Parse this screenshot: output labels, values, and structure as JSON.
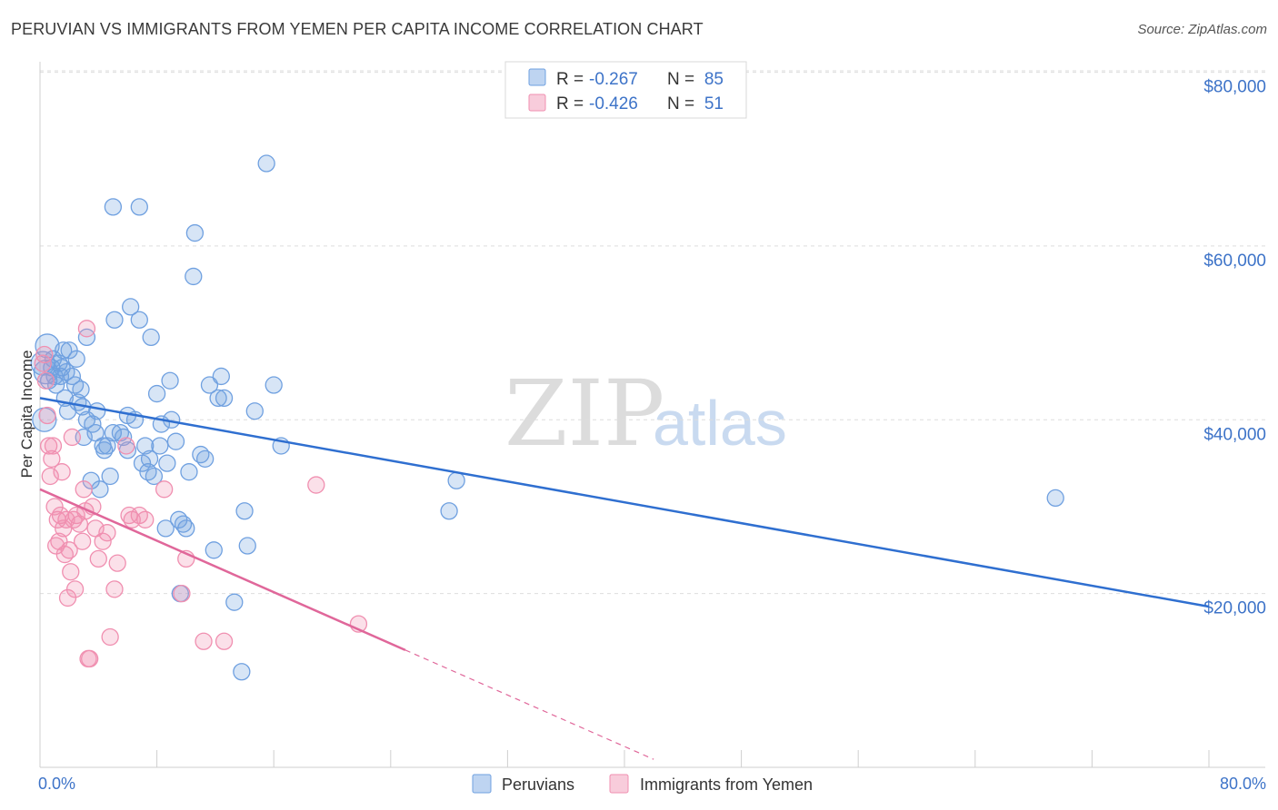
{
  "title": "PERUVIAN VS IMMIGRANTS FROM YEMEN PER CAPITA INCOME CORRELATION CHART",
  "source": "Source: ZipAtlas.com",
  "watermark": {
    "zip": "ZIP",
    "atlas": "atlas"
  },
  "legend": {
    "rows": [
      {
        "r_label": "R =",
        "r_value": "-0.267",
        "n_label": "N =",
        "n_value": "85",
        "color": "#6fa0e0"
      },
      {
        "r_label": "R =",
        "r_value": "-0.426",
        "n_label": "N =",
        "n_value": "51",
        "color": "#f08fb0"
      }
    ]
  },
  "chart_data": {
    "type": "scatter",
    "ylabel": "Per Capita Income",
    "xlim": [
      0,
      80
    ],
    "ylim": [
      0,
      81000
    ],
    "x_tick_labels": {
      "left": "0.0%",
      "right": "80.0%"
    },
    "y_ticks": [
      {
        "value": 20000,
        "label": "$20,000"
      },
      {
        "value": 40000,
        "label": "$40,000"
      },
      {
        "value": 60000,
        "label": "$60,000"
      },
      {
        "value": 80000,
        "label": "$80,000"
      }
    ],
    "grid": "horizontal dashed",
    "legend_position": "top-center",
    "series": [
      {
        "name": "Peruvians",
        "color": "#6fa0e0",
        "trend": {
          "x0": 0,
          "y0": 42500,
          "x1": 80,
          "y1": 18500,
          "dashed_from": null
        },
        "points": [
          [
            0.2,
            46500
          ],
          [
            0.3,
            40000
          ],
          [
            0.4,
            45500
          ],
          [
            0.5,
            48500
          ],
          [
            0.6,
            44500
          ],
          [
            0.8,
            46000
          ],
          [
            0.9,
            47000
          ],
          [
            1.0,
            45000
          ],
          [
            1.1,
            44000
          ],
          [
            1.3,
            46500
          ],
          [
            1.4,
            45000
          ],
          [
            1.6,
            48000
          ],
          [
            1.7,
            42500
          ],
          [
            1.9,
            41000
          ],
          [
            2.0,
            48000
          ],
          [
            2.2,
            45000
          ],
          [
            2.5,
            47000
          ],
          [
            2.6,
            42000
          ],
          [
            2.8,
            43500
          ],
          [
            2.9,
            41500
          ],
          [
            3.0,
            38000
          ],
          [
            3.2,
            40000
          ],
          [
            3.5,
            33000
          ],
          [
            3.6,
            39500
          ],
          [
            3.8,
            38500
          ],
          [
            3.9,
            41000
          ],
          [
            4.1,
            32000
          ],
          [
            4.3,
            37000
          ],
          [
            4.6,
            37000
          ],
          [
            4.8,
            33500
          ],
          [
            5.0,
            38500
          ],
          [
            5.1,
            51500
          ],
          [
            5.5,
            38500
          ],
          [
            5.7,
            38000
          ],
          [
            6.0,
            40500
          ],
          [
            6.2,
            53000
          ],
          [
            6.5,
            40000
          ],
          [
            6.8,
            51500
          ],
          [
            7.0,
            35000
          ],
          [
            7.2,
            37000
          ],
          [
            7.4,
            34000
          ],
          [
            7.6,
            49500
          ],
          [
            7.8,
            33500
          ],
          [
            8.0,
            43000
          ],
          [
            8.2,
            37000
          ],
          [
            8.3,
            39500
          ],
          [
            8.6,
            27500
          ],
          [
            8.7,
            35000
          ],
          [
            8.9,
            44500
          ],
          [
            9.0,
            40000
          ],
          [
            9.3,
            37500
          ],
          [
            9.5,
            28500
          ],
          [
            9.6,
            20000
          ],
          [
            9.8,
            28000
          ],
          [
            10.0,
            27500
          ],
          [
            10.2,
            34000
          ],
          [
            10.5,
            56500
          ],
          [
            10.6,
            61500
          ],
          [
            11.0,
            36000
          ],
          [
            11.3,
            35500
          ],
          [
            11.6,
            44000
          ],
          [
            11.9,
            25000
          ],
          [
            12.2,
            42500
          ],
          [
            12.4,
            45000
          ],
          [
            12.6,
            42500
          ],
          [
            13.3,
            19000
          ],
          [
            13.8,
            11000
          ],
          [
            14.0,
            29500
          ],
          [
            14.2,
            25500
          ],
          [
            14.7,
            41000
          ],
          [
            15.5,
            69500
          ],
          [
            16.0,
            44000
          ],
          [
            16.5,
            37000
          ],
          [
            28.0,
            29500
          ],
          [
            28.5,
            33000
          ],
          [
            69.5,
            31000
          ],
          [
            5.0,
            64500
          ],
          [
            6.8,
            64500
          ],
          [
            3.2,
            49500
          ],
          [
            1.5,
            46000
          ],
          [
            2.4,
            44000
          ],
          [
            1.8,
            45500
          ],
          [
            4.4,
            36500
          ],
          [
            6.0,
            36500
          ],
          [
            7.5,
            35500
          ]
        ]
      },
      {
        "name": "Immigrants from Yemen",
        "color": "#f08fb0",
        "trend": {
          "x0": 0,
          "y0": 32000,
          "x1": 25,
          "y1": 13500,
          "dashed_to_x": 42
        },
        "points": [
          [
            0.2,
            46500
          ],
          [
            0.3,
            47500
          ],
          [
            0.4,
            44500
          ],
          [
            0.5,
            40500
          ],
          [
            0.6,
            37000
          ],
          [
            0.7,
            33500
          ],
          [
            0.8,
            35500
          ],
          [
            0.9,
            37000
          ],
          [
            1.0,
            30000
          ],
          [
            1.1,
            25500
          ],
          [
            1.2,
            28500
          ],
          [
            1.3,
            26000
          ],
          [
            1.4,
            29000
          ],
          [
            1.5,
            34000
          ],
          [
            1.6,
            27500
          ],
          [
            1.7,
            24500
          ],
          [
            1.8,
            28500
          ],
          [
            1.9,
            19500
          ],
          [
            2.0,
            25000
          ],
          [
            2.1,
            22500
          ],
          [
            2.2,
            38000
          ],
          [
            2.3,
            28500
          ],
          [
            2.4,
            20500
          ],
          [
            2.5,
            29000
          ],
          [
            2.7,
            28000
          ],
          [
            2.9,
            26000
          ],
          [
            3.0,
            32000
          ],
          [
            3.1,
            29500
          ],
          [
            3.2,
            50500
          ],
          [
            3.3,
            12500
          ],
          [
            3.4,
            12500
          ],
          [
            3.6,
            30000
          ],
          [
            3.8,
            27500
          ],
          [
            4.0,
            24000
          ],
          [
            4.3,
            26000
          ],
          [
            4.6,
            27000
          ],
          [
            4.8,
            15000
          ],
          [
            5.1,
            20500
          ],
          [
            5.3,
            23500
          ],
          [
            5.9,
            37000
          ],
          [
            6.1,
            29000
          ],
          [
            6.3,
            28500
          ],
          [
            6.8,
            29000
          ],
          [
            7.2,
            28500
          ],
          [
            8.5,
            32000
          ],
          [
            9.7,
            20000
          ],
          [
            10.0,
            24000
          ],
          [
            11.2,
            14500
          ],
          [
            12.6,
            14500
          ],
          [
            18.9,
            32500
          ],
          [
            21.8,
            16500
          ]
        ]
      }
    ]
  }
}
